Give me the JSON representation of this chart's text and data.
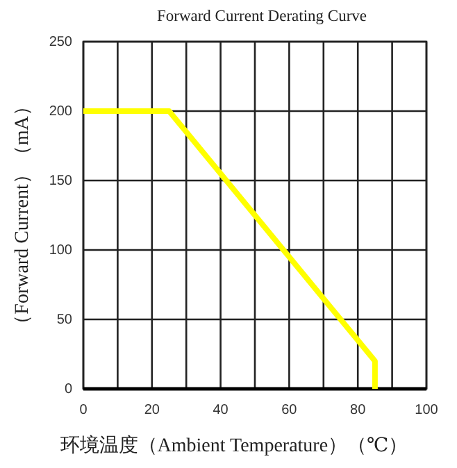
{
  "chart_data": {
    "type": "line",
    "title": "Forward Current Derating Curve",
    "xlabel": "环境温度（Ambient Temperature）（℃）",
    "ylabel": "（Forward Current）（mA）",
    "x": [
      0,
      25,
      85,
      85
    ],
    "series": [
      {
        "color": "#ffff00",
        "values": [
          200,
          200,
          20,
          0
        ]
      }
    ],
    "xlim": [
      0,
      100
    ],
    "ylim": [
      0,
      250
    ],
    "xticks": [
      0,
      {
        "value": 10,
        "label": null
      },
      20,
      {
        "value": 30,
        "label": null
      },
      40,
      {
        "value": 50,
        "label": null
      },
      60,
      {
        "value": 70,
        "label": null
      },
      80,
      {
        "value": 90,
        "label": null
      },
      100
    ],
    "yticks": [
      0,
      50,
      100,
      150,
      200,
      250
    ],
    "grid": true,
    "marker": "none",
    "line_style": "solid"
  }
}
